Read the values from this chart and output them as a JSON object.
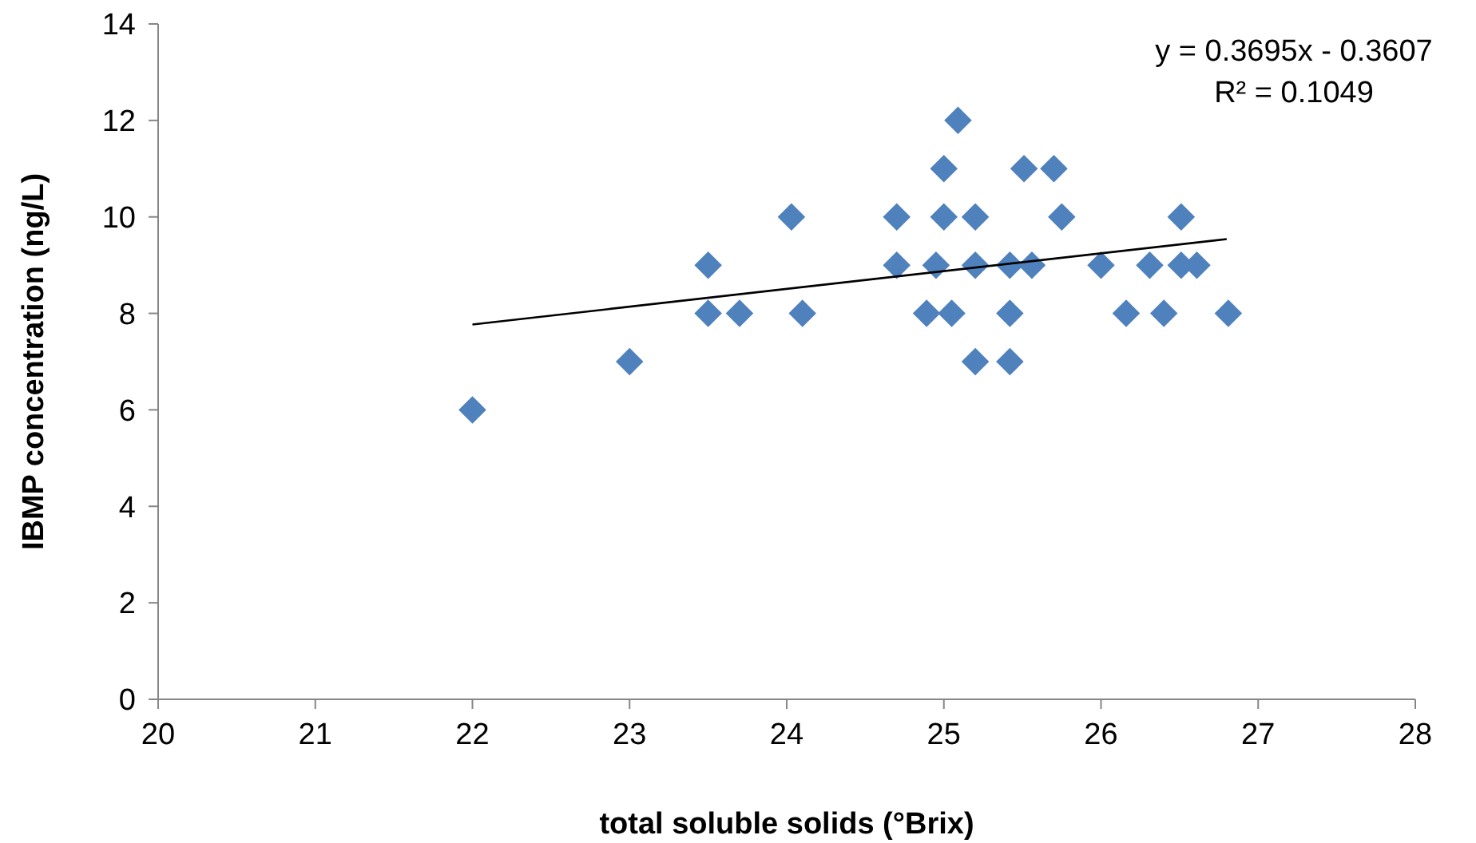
{
  "chart_data": {
    "type": "scatter",
    "xlabel": "total soluble solids (°Brix)",
    "ylabel": "IBMP concentration (ng/L)",
    "annotations": [
      "y = 0.3695x - 0.3607",
      "R² = 0.1049"
    ],
    "xlim": [
      20,
      28
    ],
    "xticks": [
      20,
      21,
      22,
      23,
      24,
      25,
      26,
      27,
      28
    ],
    "ylim": [
      0,
      14
    ],
    "yticks": [
      0,
      2,
      4,
      6,
      8,
      10,
      12,
      14
    ],
    "grid": false,
    "marker": "diamond",
    "series": [
      {
        "color": "#4f81bd",
        "x": [
          22,
          23,
          23.5,
          23.5,
          23.7,
          24.03,
          24.1,
          24.7,
          24.7,
          24.89,
          24.95,
          25,
          25,
          25.05,
          25.09,
          25.2,
          25.2,
          25.2,
          25.42,
          25.42,
          25.42,
          25.51,
          25.56,
          25.7,
          25.75,
          26,
          26.16,
          26.31,
          26.4,
          26.51,
          26.51,
          26.61,
          26.81
        ],
        "values": [
          6,
          7,
          9,
          8,
          8,
          10,
          8,
          10,
          9,
          8,
          9,
          11,
          10,
          8,
          12,
          10,
          9,
          7,
          9,
          8,
          7,
          11,
          9,
          11,
          10,
          9,
          8,
          9,
          8,
          10,
          9,
          9,
          8
        ]
      },
      {
        "type": "line",
        "color": "#000000",
        "line_style": "solid",
        "marker": "none",
        "x": [
          22,
          26.8
        ],
        "values": [
          7.77,
          9.54
        ]
      }
    ]
  }
}
